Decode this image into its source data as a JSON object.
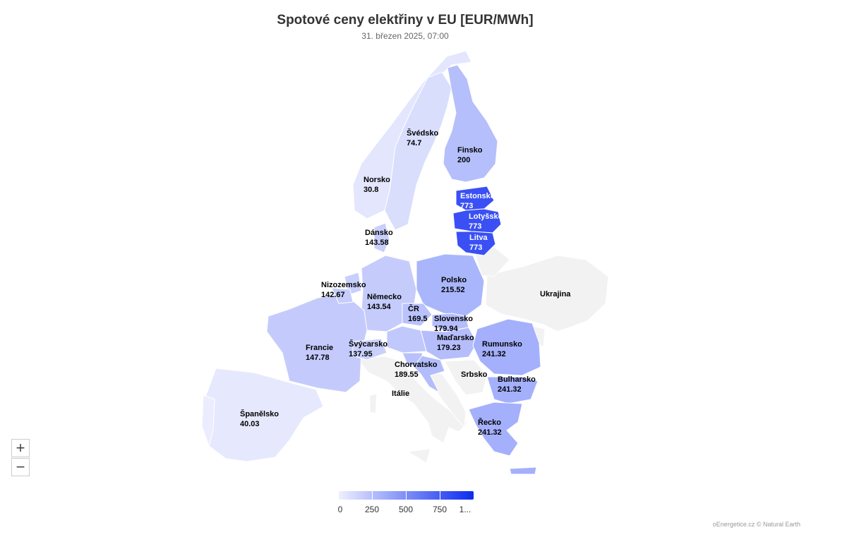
{
  "header": {
    "title": "Spotové ceny elektřiny v EU [EUR/MWh]",
    "subtitle": "31. březen 2025, 07:00"
  },
  "zoom": {
    "in_label": "+",
    "out_label": "−"
  },
  "legend": {
    "min_color": "#eef0ff",
    "max_color": "#0d2bf0",
    "ticks": [
      "0",
      "250",
      "500",
      "750",
      "1..."
    ]
  },
  "credits": "oEnergetice.cz © Natural Earth",
  "colors": {
    "no_data": "#f2f2f2",
    "border": "#ffffff"
  },
  "countries": [
    {
      "id": "norsko",
      "name": "Norsko",
      "value": "30.8"
    },
    {
      "id": "svedsko",
      "name": "Švédsko",
      "value": "74.7"
    },
    {
      "id": "finsko",
      "name": "Finsko",
      "value": "200"
    },
    {
      "id": "estonsko",
      "name": "Estonsko",
      "value": "773"
    },
    {
      "id": "lotyssko",
      "name": "Lotyšsko",
      "value": "773"
    },
    {
      "id": "litva",
      "name": "Litva",
      "value": "773"
    },
    {
      "id": "dansko",
      "name": "Dánsko",
      "value": "143.58"
    },
    {
      "id": "nizozemsko",
      "name": "Nizozemsko",
      "value": "142.67"
    },
    {
      "id": "nemecko",
      "name": "Německo",
      "value": "143.54"
    },
    {
      "id": "polsko",
      "name": "Polsko",
      "value": "215.52"
    },
    {
      "id": "cr",
      "name": "ČR",
      "value": "169.5"
    },
    {
      "id": "slovensko",
      "name": "Slovensko",
      "value": "179.94"
    },
    {
      "id": "madarsko",
      "name": "Maďarsko",
      "value": "179.23"
    },
    {
      "id": "francie",
      "name": "Francie",
      "value": "147.78"
    },
    {
      "id": "svycarsko",
      "name": "Švýcarsko",
      "value": "137.95"
    },
    {
      "id": "chorvatsko",
      "name": "Chorvatsko",
      "value": "189.55"
    },
    {
      "id": "rumunsko",
      "name": "Rumunsko",
      "value": "241.32"
    },
    {
      "id": "bulharsko",
      "name": "Bulharsko",
      "value": "241.32"
    },
    {
      "id": "recko",
      "name": "Řecko",
      "value": "241.32"
    },
    {
      "id": "spanelsko",
      "name": "Španělsko",
      "value": "40.03"
    },
    {
      "id": "ukrajina",
      "name": "Ukrajina",
      "value": ""
    },
    {
      "id": "srbsko",
      "name": "Srbsko",
      "value": ""
    },
    {
      "id": "italie",
      "name": "Itálie",
      "value": ""
    }
  ]
}
